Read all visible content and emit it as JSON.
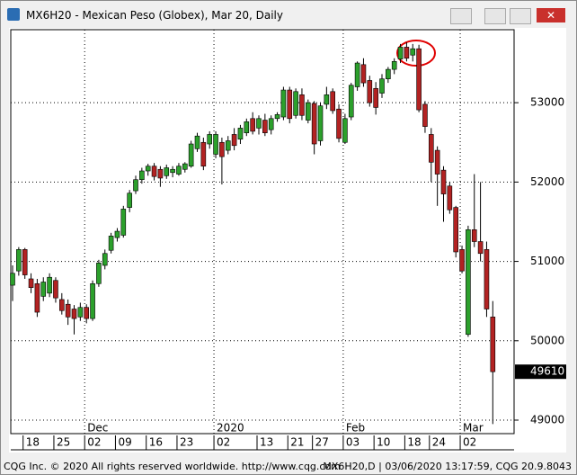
{
  "chart_data": {
    "type": "candlestick",
    "title": "MX6H20 - Mexican Peso (Globex), Mar 20, Daily",
    "footer_left": "CQG Inc. © 2020 All rights reserved worldwide. http://www.cqg.com",
    "footer_right": "MX6H20,D | 03/06/2020 13:17:59, CQG 20.9.8043",
    "categories": [
      null,
      null,
      "18",
      null,
      null,
      null,
      null,
      "25",
      null,
      null,
      null,
      null,
      "02",
      null,
      null,
      null,
      null,
      "09",
      null,
      null,
      null,
      null,
      "16",
      null,
      null,
      null,
      null,
      "23",
      null,
      null,
      null,
      null,
      null,
      "02",
      null,
      null,
      null,
      null,
      null,
      null,
      "13",
      null,
      null,
      null,
      null,
      "21",
      null,
      null,
      null,
      "27",
      null,
      null,
      null,
      null,
      "03",
      null,
      null,
      null,
      null,
      "10",
      null,
      null,
      null,
      null,
      "18",
      null,
      null,
      null,
      "24",
      null,
      null,
      null,
      null,
      "02",
      null,
      null,
      null,
      null,
      null
    ],
    "month_labels": [
      null,
      null,
      null,
      null,
      null,
      null,
      null,
      null,
      null,
      null,
      null,
      null,
      "Dec",
      null,
      null,
      null,
      null,
      null,
      null,
      null,
      null,
      null,
      null,
      null,
      null,
      null,
      null,
      null,
      null,
      null,
      null,
      null,
      null,
      "2020",
      null,
      null,
      null,
      null,
      null,
      null,
      null,
      null,
      null,
      null,
      null,
      null,
      null,
      null,
      null,
      null,
      null,
      null,
      null,
      null,
      "Feb",
      null,
      null,
      null,
      null,
      null,
      null,
      null,
      null,
      null,
      null,
      null,
      null,
      null,
      null,
      null,
      null,
      null,
      null,
      "Mar",
      null,
      null,
      null,
      null,
      null
    ],
    "open": [
      50700,
      50880,
      51150,
      50780,
      50720,
      50560,
      50600,
      50760,
      50520,
      50460,
      50400,
      50300,
      50420,
      50280,
      50720,
      50950,
      51140,
      51300,
      51330,
      51680,
      51890,
      52030,
      52140,
      52200,
      52160,
      52080,
      52120,
      52100,
      52160,
      52200,
      52420,
      52500,
      52480,
      52350,
      52500,
      52400,
      52600,
      52540,
      52620,
      52800,
      52680,
      52780,
      52660,
      52800,
      52820,
      53160,
      52840,
      53100,
      52780,
      52990,
      52520,
      52980,
      53140,
      52920,
      52500,
      52820,
      53200,
      53480,
      53280,
      53180,
      53120,
      53300,
      53420,
      53550,
      53700,
      53600,
      53680,
      52980,
      52600,
      52400,
      52150,
      51950,
      51680,
      51150,
      50080,
      51400,
      51250,
      51150,
      50300
    ],
    "high": [
      50950,
      51180,
      51170,
      50850,
      50780,
      50800,
      50850,
      50800,
      50600,
      50520,
      50450,
      50480,
      50460,
      50760,
      51020,
      51150,
      51360,
      51420,
      51700,
      51900,
      52080,
      52180,
      52230,
      52240,
      52200,
      52220,
      52200,
      52240,
      52250,
      52520,
      52620,
      52560,
      52640,
      52640,
      52560,
      52580,
      52680,
      52720,
      52800,
      52880,
      52840,
      52860,
      52840,
      52880,
      53200,
      53200,
      53180,
      53180,
      53040,
      53020,
      53000,
      53200,
      53180,
      52980,
      52860,
      53250,
      53520,
      53560,
      53340,
      53260,
      53360,
      53450,
      53560,
      53740,
      53760,
      53740,
      53730,
      53020,
      52680,
      52450,
      52200,
      52000,
      51700,
      51200,
      51450,
      52100,
      52000,
      51250,
      50500
    ],
    "low": [
      50500,
      50820,
      50780,
      50600,
      50300,
      50500,
      50550,
      50480,
      50330,
      50200,
      50080,
      50250,
      50220,
      50250,
      50680,
      50900,
      51100,
      51250,
      51300,
      51620,
      51850,
      51980,
      52080,
      52020,
      51940,
      52040,
      52060,
      52080,
      52120,
      52180,
      52380,
      52150,
      52420,
      52300,
      51970,
      52350,
      52400,
      52480,
      52580,
      52600,
      52600,
      52580,
      52600,
      52760,
      52780,
      52740,
      52800,
      52780,
      52740,
      52350,
      52460,
      52920,
      52860,
      52500,
      52480,
      52780,
      53150,
      53200,
      52950,
      52850,
      53060,
      53250,
      53360,
      53500,
      53520,
      53520,
      52880,
      52620,
      52000,
      51700,
      51500,
      51600,
      51050,
      50850,
      50050,
      51180,
      51000,
      50300,
      48950
    ],
    "close": [
      50850,
      51150,
      50830,
      50670,
      50360,
      50740,
      50800,
      50540,
      50380,
      50300,
      50280,
      50420,
      50280,
      50720,
      50980,
      51100,
      51320,
      51380,
      51660,
      51860,
      52030,
      52140,
      52200,
      52070,
      52050,
      52180,
      52160,
      52200,
      52230,
      52480,
      52580,
      52200,
      52600,
      52600,
      52320,
      52520,
      52460,
      52680,
      52760,
      52640,
      52800,
      52620,
      52800,
      52850,
      53160,
      52800,
      53140,
      52840,
      53000,
      52480,
      52960,
      53100,
      52900,
      52550,
      52800,
      53220,
      53500,
      53250,
      53000,
      52940,
      53300,
      53420,
      53520,
      53700,
      53560,
      53680,
      52910,
      52700,
      52250,
      52100,
      51850,
      51650,
      51120,
      50880,
      51400,
      51250,
      51100,
      50400,
      49610
    ],
    "up_color": "#2ca02c",
    "down_color": "#b22222",
    "ylim": [
      48830,
      53920
    ],
    "yticks": [
      49000,
      50000,
      51000,
      52000,
      53000
    ],
    "last_price": 49610,
    "grid": true
  }
}
